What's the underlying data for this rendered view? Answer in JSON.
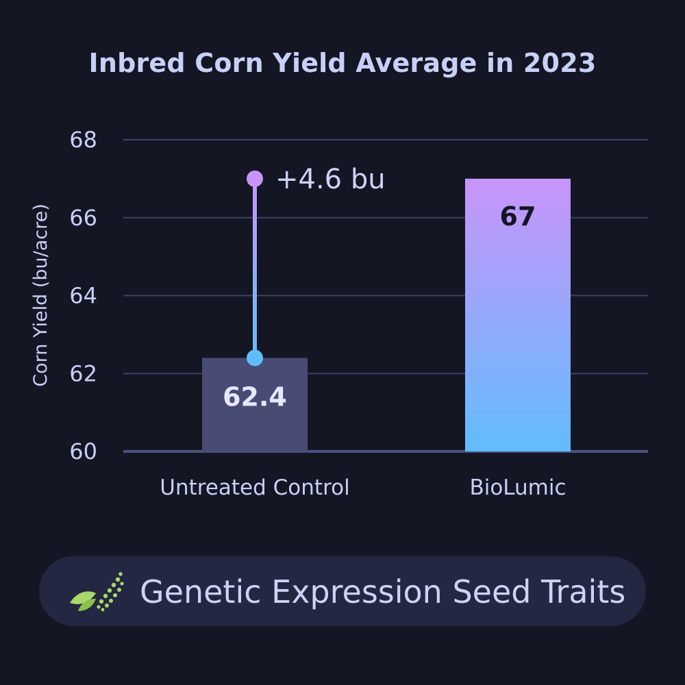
{
  "colors": {
    "background": "#141624",
    "title": "#c9d0f7",
    "grid": "#3c4166",
    "axis_text": "#c9d0f7",
    "control_bar": "#484c75",
    "gradient_top": "#c894fa",
    "gradient_bottom": "#62bcfb",
    "pill": "#232741",
    "leaf_green": "#a8d86a"
  },
  "footer": {
    "label": "Genetic Expression Seed Traits",
    "icon": "leaf-dna-icon"
  },
  "chart_data": {
    "type": "bar",
    "title": "Inbred Corn Yield Average in 2023",
    "xlabel": "",
    "ylabel": "Corn Yield (bu/acre)",
    "categories": [
      "Untreated Control",
      "BioLumic"
    ],
    "values": [
      62.4,
      67
    ],
    "value_labels": [
      "62.4",
      "67"
    ],
    "ylim": [
      60,
      68
    ],
    "yticks": [
      60,
      62,
      64,
      66,
      68
    ],
    "grid": true,
    "legend": "none",
    "annotation": {
      "text": "+4.6 bu",
      "from_value": 62.4,
      "to_value": 67,
      "category": "Untreated Control"
    }
  }
}
